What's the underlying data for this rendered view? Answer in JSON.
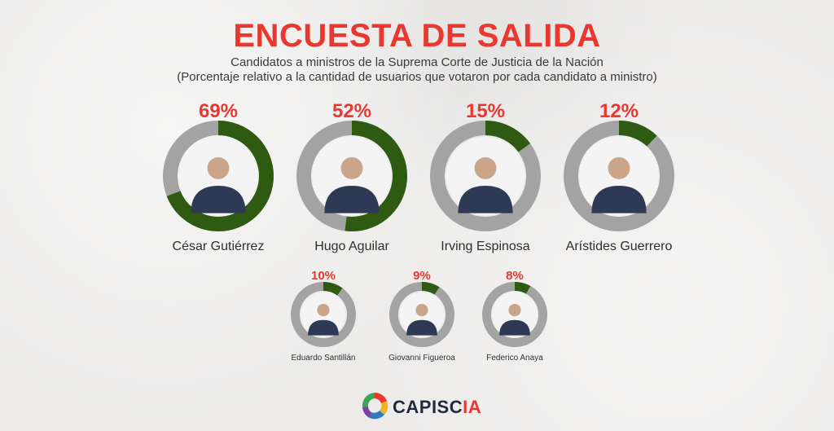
{
  "title": "ENCUESTA DE SALIDA",
  "subtitle_line1": "Candidatos a ministros de la Suprema Corte de Justicia de la Nación",
  "subtitle_line2": "(Porcentaje relativo a la cantidad de usuarios que votaron por cada candidato a ministro)",
  "colors": {
    "title": "#e8382f",
    "filled": "#2f5a12",
    "remaining": "#a3a3a3",
    "text": "#2f2f2f"
  },
  "chart_data": {
    "type": "pie",
    "variant": "donut",
    "categories": [
      "César Gutiérrez",
      "Hugo Aguilar",
      "Irving Espinosa",
      "Arístides Guerrero",
      "Eduardo Santillán",
      "Giovanni Figueroa",
      "Federico Anaya"
    ],
    "values": [
      69,
      52,
      15,
      12,
      10,
      9,
      8
    ],
    "value_labels": [
      "69%",
      "52%",
      "15%",
      "12%",
      "10%",
      "9%",
      "8%"
    ],
    "unit": "%"
  },
  "logo": {
    "name_main": "CAPISC",
    "name_accent": "IA"
  }
}
